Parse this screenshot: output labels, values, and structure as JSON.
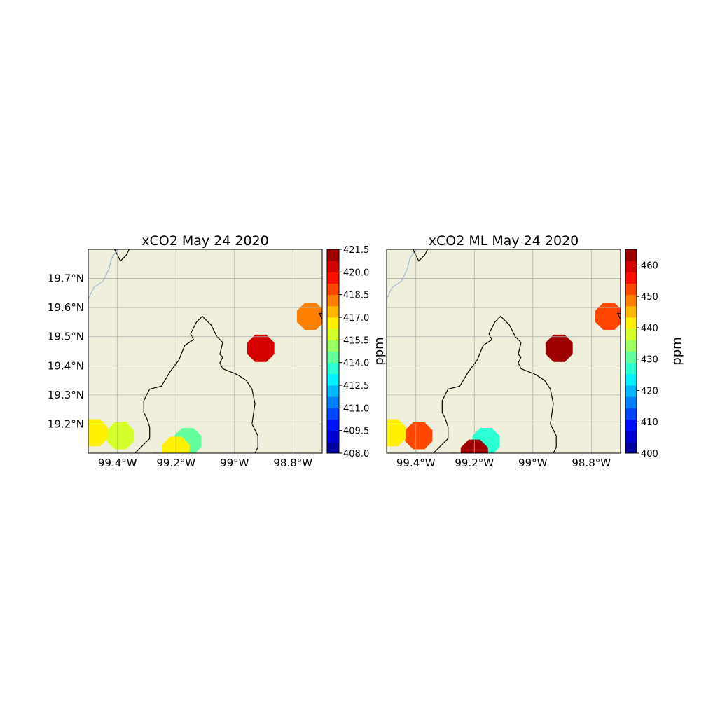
{
  "figure": {
    "panels": [
      {
        "title": "xCO2 May 24 2020",
        "colorbar_label": "ppm"
      },
      {
        "title": "xCO2 ML May 24 2020",
        "colorbar_label": "ppm"
      }
    ],
    "colors": {
      "land": "#efefdb",
      "coast": "#000000",
      "river": "#9dbad6",
      "grid": "#b0b0b0"
    }
  },
  "chart_data": [
    {
      "type": "heatmap",
      "title": "xCO2 May 24 2020",
      "xlabel": "",
      "ylabel": "",
      "x_ticks": [
        -99.4,
        -99.2,
        -99.0,
        -98.8
      ],
      "x_tick_labels": [
        "99.4°W",
        "99.2°W",
        "99°W",
        "98.8°W"
      ],
      "y_ticks": [
        19.2,
        19.3,
        19.4,
        19.5,
        19.6,
        19.7
      ],
      "y_tick_labels": [
        "19.2°N",
        "19.3°N",
        "19.4°N",
        "19.5°N",
        "19.6°N",
        "19.7°N"
      ],
      "xlim": [
        -99.5,
        -98.7
      ],
      "ylim": [
        19.1,
        19.8
      ],
      "grid": true,
      "colorbar": {
        "label": "ppm",
        "range": [
          408.0,
          421.5
        ],
        "ticks": [
          408.0,
          409.5,
          411.0,
          412.5,
          414.0,
          415.5,
          417.0,
          418.5,
          420.0,
          421.5
        ],
        "tick_labels": [
          "408.0",
          "409.5",
          "411.0",
          "412.5",
          "414.0",
          "415.5",
          "417.0",
          "418.5",
          "420.0",
          "421.5"
        ]
      },
      "soundings": [
        {
          "lon": -98.91,
          "lat": 19.46,
          "value": 420.6
        },
        {
          "lon": -98.74,
          "lat": 19.57,
          "value": 417.9
        },
        {
          "lon": -99.16,
          "lat": 19.14,
          "value": 414.1
        },
        {
          "lon": -99.39,
          "lat": 19.16,
          "value": 416.2
        },
        {
          "lon": -99.48,
          "lat": 19.17,
          "value": 416.9
        },
        {
          "lon": -99.2,
          "lat": 19.11,
          "value": 416.8
        }
      ]
    },
    {
      "type": "heatmap",
      "title": "xCO2 ML May 24 2020",
      "xlabel": "",
      "ylabel": "",
      "x_ticks": [
        -99.4,
        -99.2,
        -99.0,
        -98.8
      ],
      "x_tick_labels": [
        "99.4°W",
        "99.2°W",
        "99°W",
        "98.8°W"
      ],
      "y_ticks": [],
      "y_tick_labels": [],
      "xlim": [
        -99.5,
        -98.7
      ],
      "ylim": [
        19.1,
        19.8
      ],
      "grid": true,
      "colorbar": {
        "label": "ppm",
        "range": [
          400,
          465
        ],
        "ticks": [
          400,
          410,
          420,
          430,
          440,
          450,
          460
        ],
        "tick_labels": [
          "400",
          "410",
          "420",
          "430",
          "440",
          "450",
          "460"
        ]
      },
      "soundings": [
        {
          "lon": -98.91,
          "lat": 19.46,
          "value": 462
        },
        {
          "lon": -98.74,
          "lat": 19.57,
          "value": 452
        },
        {
          "lon": -99.16,
          "lat": 19.14,
          "value": 428
        },
        {
          "lon": -99.39,
          "lat": 19.16,
          "value": 452
        },
        {
          "lon": -99.48,
          "lat": 19.17,
          "value": 443
        },
        {
          "lon": -99.2,
          "lat": 19.1,
          "value": 463
        }
      ]
    }
  ]
}
